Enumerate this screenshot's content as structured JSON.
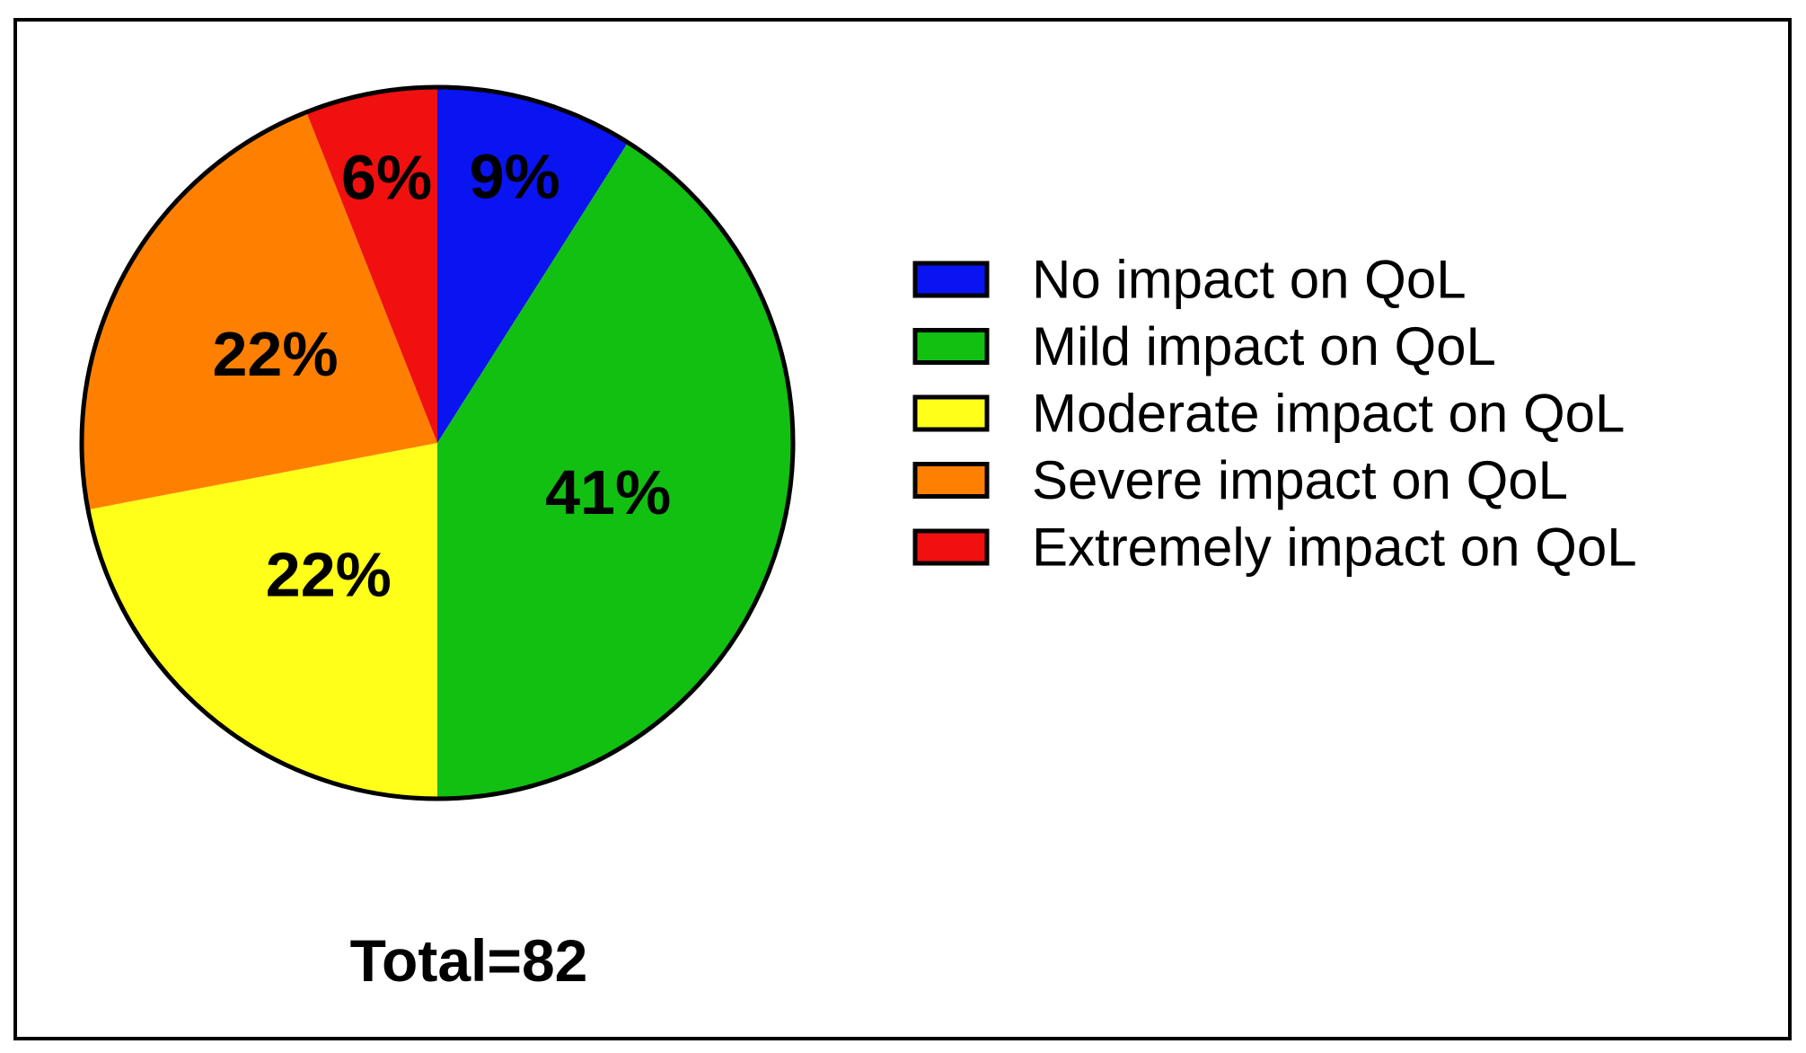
{
  "chart_data": {
    "type": "pie",
    "slices": [
      {
        "label": "No impact on QoL",
        "value": 9,
        "value_label": "9%",
        "color": "#0a14f0"
      },
      {
        "label": "Mild impact on QoL",
        "value": 41,
        "value_label": "41%",
        "color": "#12c012"
      },
      {
        "label": "Moderate impact on QoL",
        "value": 22,
        "value_label": "22%",
        "color": "#ffff1a"
      },
      {
        "label": "Severe impact on QoL",
        "value": 22,
        "value_label": "22%",
        "color": "#ff8000"
      },
      {
        "label": "Extremely impact on QoL",
        "value": 6,
        "value_label": "6%",
        "color": "#f01010"
      }
    ],
    "start_angle_deg": 0,
    "direction": "clockwise",
    "legend_position": "right",
    "total_label": "Total=82"
  }
}
